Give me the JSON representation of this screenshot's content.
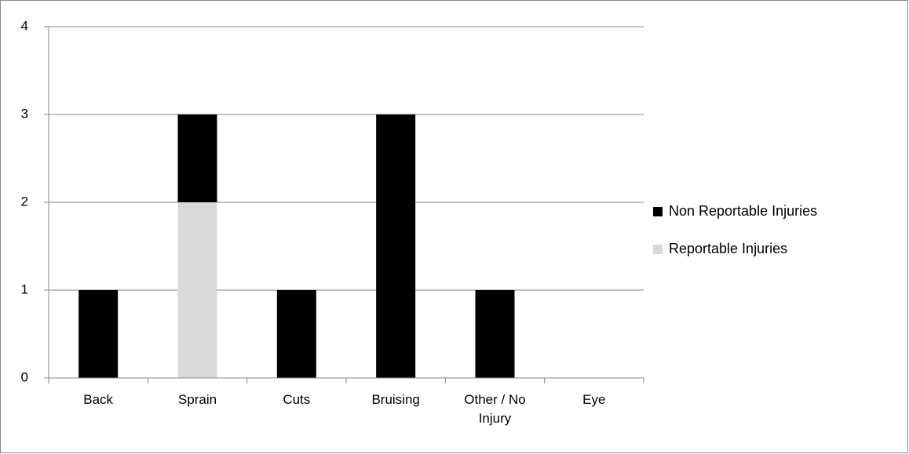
{
  "chart_data": {
    "type": "bar",
    "stacked": true,
    "categories": [
      "Back",
      "Sprain",
      "Cuts",
      "Bruising",
      "Other / No Injury",
      "Eye"
    ],
    "series": [
      {
        "name": "Non Reportable Injuries",
        "color": "#000000",
        "values": [
          1,
          1,
          1,
          3,
          1,
          0
        ]
      },
      {
        "name": "Reportable Injuries",
        "color": "#d9d9d9",
        "values": [
          0,
          2,
          0,
          0,
          0,
          0
        ]
      }
    ],
    "ylim": [
      0,
      4
    ],
    "yticks": [
      0,
      1,
      2,
      3,
      4
    ],
    "grid": true,
    "legend": "right"
  }
}
